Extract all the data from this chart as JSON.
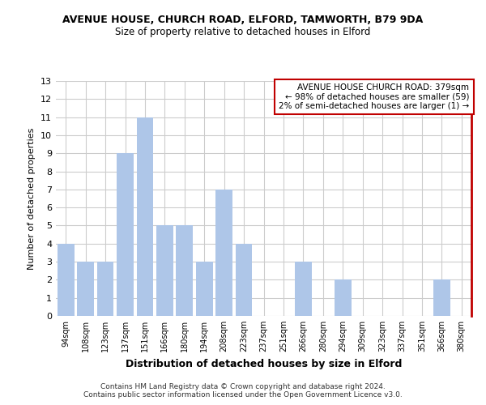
{
  "title": "AVENUE HOUSE, CHURCH ROAD, ELFORD, TAMWORTH, B79 9DA",
  "subtitle": "Size of property relative to detached houses in Elford",
  "xlabel": "Distribution of detached houses by size in Elford",
  "ylabel": "Number of detached properties",
  "footer": "Contains HM Land Registry data © Crown copyright and database right 2024.\nContains public sector information licensed under the Open Government Licence v3.0.",
  "categories": [
    "94sqm",
    "108sqm",
    "123sqm",
    "137sqm",
    "151sqm",
    "166sqm",
    "180sqm",
    "194sqm",
    "208sqm",
    "223sqm",
    "237sqm",
    "251sqm",
    "266sqm",
    "280sqm",
    "294sqm",
    "309sqm",
    "323sqm",
    "337sqm",
    "351sqm",
    "366sqm",
    "380sqm"
  ],
  "values": [
    4,
    3,
    3,
    9,
    11,
    5,
    5,
    3,
    7,
    4,
    0,
    0,
    3,
    0,
    2,
    0,
    0,
    0,
    0,
    2,
    0
  ],
  "highlight_index": 20,
  "bar_color": "#aec6e8",
  "highlight_color": "#c00000",
  "annotation_box_color": "#c00000",
  "annotation_text": "AVENUE HOUSE CHURCH ROAD: 379sqm\n← 98% of detached houses are smaller (59)\n2% of semi-detached houses are larger (1) →",
  "ylim": [
    0,
    13
  ],
  "yticks": [
    0,
    1,
    2,
    3,
    4,
    5,
    6,
    7,
    8,
    9,
    10,
    11,
    12,
    13
  ],
  "grid_color": "#cccccc",
  "background_color": "#ffffff",
  "title_fontsize": 9,
  "subtitle_fontsize": 8.5
}
